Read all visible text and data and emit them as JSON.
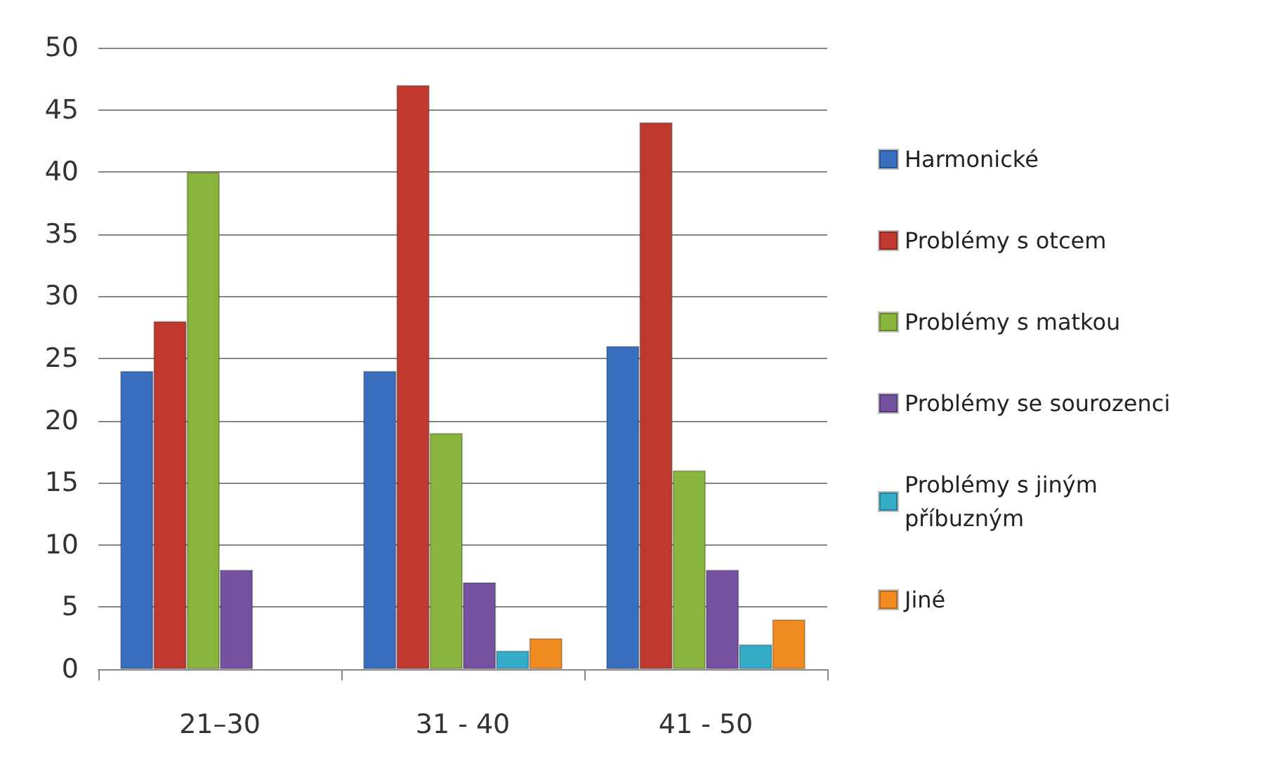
{
  "chart_data": {
    "type": "bar",
    "categories": [
      "21–30",
      "31 - 40",
      "41 - 50"
    ],
    "series": [
      {
        "name": "Harmonické",
        "color": "#3a6fc0",
        "values": [
          24,
          24,
          26
        ]
      },
      {
        "name": "Problémy s otcem",
        "color": "#c0392f",
        "values": [
          28,
          47,
          44
        ]
      },
      {
        "name": "Problémy s matkou",
        "color": "#8ab53c",
        "values": [
          40,
          19,
          16
        ]
      },
      {
        "name": "Problémy se sourozenci",
        "color": "#7552a0",
        "values": [
          8,
          7,
          8
        ]
      },
      {
        "name": "Problémy s jiným příbuzným",
        "color": "#35acc8",
        "values": [
          null,
          1.5,
          2
        ]
      },
      {
        "name": "Jiné",
        "color": "#f08c22",
        "values": [
          null,
          2.5,
          4
        ]
      }
    ],
    "ylim": [
      0,
      50
    ],
    "yticks": [
      0,
      5,
      10,
      15,
      20,
      25,
      30,
      35,
      40,
      45,
      50
    ],
    "grid": "y",
    "legend": "right"
  }
}
